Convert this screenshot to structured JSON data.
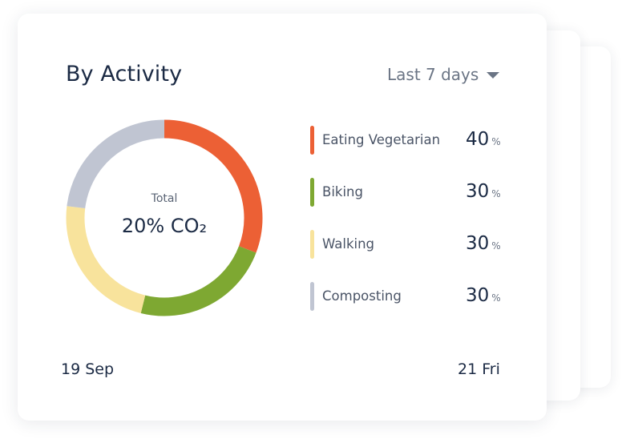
{
  "card": {
    "title": "By Activity",
    "period_label": "Last 7 days"
  },
  "donut": {
    "total_label": "Total",
    "total_value": "20% CO₂"
  },
  "chart_data": {
    "type": "pie",
    "title": "By Activity",
    "categories": [
      "Eating Vegetarian",
      "Biking",
      "Walking",
      "Composting"
    ],
    "values": [
      40,
      30,
      30,
      30
    ],
    "colors": [
      "#ec6035",
      "#7ea832",
      "#f8e39c",
      "#c0c5d2"
    ]
  },
  "legend": [
    {
      "label": "Eating Vegetarian",
      "value": "40",
      "unit": "%",
      "color": "#ec6035"
    },
    {
      "label": "Biking",
      "value": "30",
      "unit": "%",
      "color": "#7ea832"
    },
    {
      "label": "Walking",
      "value": "30",
      "unit": "%",
      "color": "#f8e39c"
    },
    {
      "label": "Composting",
      "value": "30",
      "unit": "%",
      "color": "#c0c5d2"
    }
  ],
  "footer": {
    "start_date": "19 Sep",
    "end_date": "21 Fri"
  }
}
